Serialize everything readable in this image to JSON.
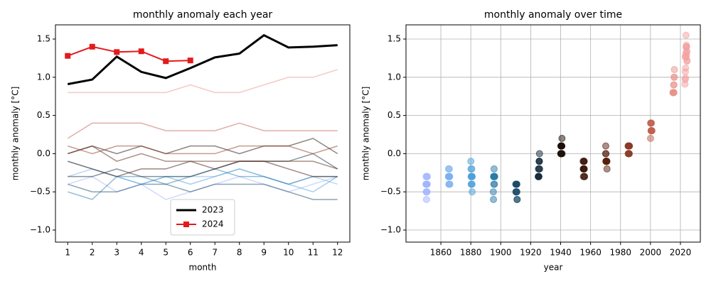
{
  "chart_data": [
    {
      "type": "line",
      "title": "monthly anomaly each year",
      "xlabel": "month",
      "ylabel": "monthly anomaly [°C]",
      "x": [
        1,
        2,
        3,
        4,
        5,
        6,
        7,
        8,
        9,
        10,
        11,
        12
      ],
      "xlim": [
        0.5,
        12.5
      ],
      "xticks": [
        1,
        2,
        3,
        4,
        5,
        6,
        7,
        8,
        9,
        10,
        11,
        12
      ],
      "ylim": [
        -1.158,
        1.686
      ],
      "yticks": [
        {
          "value": -1,
          "label": "−1.0"
        },
        {
          "value": -0.5,
          "label": "−0.5"
        },
        {
          "value": 0,
          "label": "0.0"
        },
        {
          "value": 0.5,
          "label": "0.5"
        },
        {
          "value": 1,
          "label": "1.0"
        },
        {
          "value": 1.5,
          "label": "1.5"
        }
      ],
      "grid": false,
      "legend": "lower center",
      "series": [
        {
          "color": "#a0b4ff",
          "values": [
            -0.4,
            -0.3,
            -0.5,
            -0.4,
            -0.6,
            -0.5,
            -0.4,
            -0.3,
            -0.4,
            -0.5,
            -0.4,
            -0.3
          ]
        },
        {
          "color": "#7cb0ee",
          "values": [
            -0.3,
            -0.2,
            -0.3,
            -0.4,
            -0.3,
            -0.3,
            -0.3,
            -0.2,
            -0.3,
            -0.4,
            -0.3,
            -0.4
          ]
        },
        {
          "color": "#4a9fd8",
          "values": [
            -0.1,
            -0.2,
            -0.3,
            -0.4,
            -0.3,
            -0.4,
            -0.3,
            -0.2,
            -0.3,
            -0.4,
            -0.5,
            -0.3
          ]
        },
        {
          "color": "#2a7aa8",
          "values": [
            -0.5,
            -0.6,
            -0.3,
            -0.3,
            -0.4,
            -0.3,
            -0.2,
            -0.3,
            -0.3,
            -0.4,
            -0.3,
            -0.3
          ]
        },
        {
          "color": "#1a4a66",
          "values": [
            -0.4,
            -0.5,
            -0.5,
            -0.4,
            -0.4,
            -0.5,
            -0.4,
            -0.4,
            -0.4,
            -0.5,
            -0.6,
            -0.6
          ]
        },
        {
          "color": "#10283a",
          "values": [
            -0.3,
            -0.3,
            -0.2,
            -0.3,
            -0.3,
            -0.3,
            -0.2,
            -0.1,
            -0.1,
            -0.1,
            0.0,
            -0.2
          ]
        },
        {
          "color": "#1a0c05",
          "values": [
            0.0,
            0.1,
            0.0,
            0.1,
            0.0,
            0.1,
            0.1,
            0.0,
            0.1,
            0.1,
            0.2,
            0.0
          ]
        },
        {
          "color": "#3a1408",
          "values": [
            -0.1,
            -0.2,
            -0.3,
            -0.2,
            -0.2,
            -0.1,
            -0.2,
            -0.1,
            -0.1,
            -0.2,
            -0.3,
            -0.3
          ]
        },
        {
          "color": "#5a200e",
          "values": [
            0.0,
            0.1,
            -0.1,
            0.0,
            -0.1,
            -0.1,
            -0.1,
            -0.1,
            -0.1,
            -0.1,
            -0.1,
            -0.2
          ]
        },
        {
          "color": "#8a3a24",
          "values": [
            0.1,
            0.0,
            0.1,
            0.1,
            0.0,
            0.0,
            0.0,
            0.1,
            0.1,
            0.1,
            0.0,
            0.1
          ]
        },
        {
          "color": "#c06050",
          "values": [
            0.2,
            0.4,
            0.4,
            0.4,
            0.3,
            0.3,
            0.3,
            0.4,
            0.3,
            0.3,
            0.3,
            0.3
          ]
        },
        {
          "color": "#e8948c",
          "values": [
            0.8,
            0.8,
            0.8,
            0.8,
            0.8,
            0.9,
            0.8,
            0.8,
            0.9,
            1.0,
            1.0,
            1.1
          ]
        },
        {
          "name": "2023",
          "color": "#000000",
          "width": 3,
          "values": [
            0.91,
            0.97,
            1.27,
            1.07,
            0.99,
            1.12,
            1.26,
            1.31,
            1.55,
            1.39,
            1.4,
            1.42
          ]
        },
        {
          "name": "2024",
          "color": "#e31a1c",
          "width": 2,
          "marker": "square",
          "values": [
            1.28,
            1.4,
            1.33,
            1.34,
            1.21,
            1.22,
            null,
            null,
            null,
            null,
            null,
            null
          ]
        }
      ]
    },
    {
      "type": "scatter",
      "title": "monthly anomaly over time",
      "xlabel": "year",
      "ylabel": "monthly anomaly [°C]",
      "xlim": [
        1836.7,
        2033.3
      ],
      "xticks": [
        1860,
        1880,
        1900,
        1920,
        1940,
        1960,
        1980,
        2000,
        2020
      ],
      "ylim": [
        -1.158,
        1.686
      ],
      "yticks": [
        {
          "value": -1,
          "label": "−1.0"
        },
        {
          "value": -0.5,
          "label": "−0.5"
        },
        {
          "value": 0,
          "label": "0.0"
        },
        {
          "value": 0.5,
          "label": "0.5"
        },
        {
          "value": 1,
          "label": "1.0"
        },
        {
          "value": 1.5,
          "label": "1.5"
        }
      ],
      "grid": true,
      "series": [
        {
          "color": "#a0b4ff",
          "x": [
            1850.04,
            1850.13,
            1850.21,
            1850.29,
            1850.38,
            1850.46,
            1850.54,
            1850.63,
            1850.71,
            1850.79,
            1850.88,
            1850.96
          ],
          "values": [
            -0.4,
            -0.3,
            -0.5,
            -0.4,
            -0.6,
            -0.5,
            -0.4,
            -0.3,
            -0.4,
            -0.5,
            -0.4,
            -0.3
          ]
        },
        {
          "color": "#7cb0ee",
          "x": [
            1865.04,
            1865.13,
            1865.21,
            1865.29,
            1865.38,
            1865.46,
            1865.54,
            1865.63,
            1865.71,
            1865.79,
            1865.88,
            1865.96
          ],
          "values": [
            -0.3,
            -0.2,
            -0.3,
            -0.4,
            -0.3,
            -0.3,
            -0.3,
            -0.2,
            -0.3,
            -0.4,
            -0.3,
            -0.4
          ]
        },
        {
          "color": "#4a9fd8",
          "x": [
            1880.04,
            1880.13,
            1880.21,
            1880.29,
            1880.38,
            1880.46,
            1880.54,
            1880.63,
            1880.71,
            1880.79,
            1880.88,
            1880.96
          ],
          "values": [
            -0.1,
            -0.2,
            -0.3,
            -0.4,
            -0.3,
            -0.4,
            -0.3,
            -0.2,
            -0.3,
            -0.4,
            -0.5,
            -0.3
          ]
        },
        {
          "color": "#2a7aa8",
          "x": [
            1895.04,
            1895.13,
            1895.21,
            1895.29,
            1895.38,
            1895.46,
            1895.54,
            1895.63,
            1895.71,
            1895.79,
            1895.88,
            1895.96
          ],
          "values": [
            -0.5,
            -0.6,
            -0.3,
            -0.3,
            -0.4,
            -0.3,
            -0.2,
            -0.3,
            -0.3,
            -0.4,
            -0.3,
            -0.3
          ]
        },
        {
          "color": "#1a4a66",
          "x": [
            1910.04,
            1910.13,
            1910.21,
            1910.29,
            1910.38,
            1910.46,
            1910.54,
            1910.63,
            1910.71,
            1910.79,
            1910.88,
            1910.96
          ],
          "values": [
            -0.4,
            -0.5,
            -0.5,
            -0.4,
            -0.4,
            -0.5,
            -0.4,
            -0.4,
            -0.4,
            -0.5,
            -0.6,
            -0.6
          ]
        },
        {
          "color": "#10283a",
          "x": [
            1925.04,
            1925.13,
            1925.21,
            1925.29,
            1925.38,
            1925.46,
            1925.54,
            1925.63,
            1925.71,
            1925.79,
            1925.88,
            1925.96
          ],
          "values": [
            -0.3,
            -0.3,
            -0.2,
            -0.3,
            -0.3,
            -0.3,
            -0.2,
            -0.1,
            -0.1,
            -0.1,
            0.0,
            -0.2
          ]
        },
        {
          "color": "#1a0c05",
          "x": [
            1940.04,
            1940.13,
            1940.21,
            1940.29,
            1940.38,
            1940.46,
            1940.54,
            1940.63,
            1940.71,
            1940.79,
            1940.88,
            1940.96
          ],
          "values": [
            0.0,
            0.1,
            0.0,
            0.1,
            0.0,
            0.1,
            0.1,
            0.0,
            0.1,
            0.1,
            0.2,
            0.0
          ]
        },
        {
          "color": "#3a1408",
          "x": [
            1955.04,
            1955.13,
            1955.21,
            1955.29,
            1955.38,
            1955.46,
            1955.54,
            1955.63,
            1955.71,
            1955.79,
            1955.88,
            1955.96
          ],
          "values": [
            -0.1,
            -0.2,
            -0.3,
            -0.2,
            -0.2,
            -0.1,
            -0.2,
            -0.1,
            -0.1,
            -0.2,
            -0.3,
            -0.3
          ]
        },
        {
          "color": "#5a200e",
          "x": [
            1970.04,
            1970.13,
            1970.21,
            1970.29,
            1970.38,
            1970.46,
            1970.54,
            1970.63,
            1970.71,
            1970.79,
            1970.88,
            1970.96
          ],
          "values": [
            0.0,
            0.1,
            -0.1,
            0.0,
            -0.1,
            -0.1,
            -0.1,
            -0.1,
            -0.1,
            -0.1,
            -0.1,
            -0.2
          ]
        },
        {
          "color": "#8a3a24",
          "x": [
            1985.04,
            1985.13,
            1985.21,
            1985.29,
            1985.38,
            1985.46,
            1985.54,
            1985.63,
            1985.71,
            1985.79,
            1985.88,
            1985.96
          ],
          "values": [
            0.1,
            0.0,
            0.1,
            0.1,
            0.0,
            0.0,
            0.0,
            0.1,
            0.1,
            0.1,
            0.0,
            0.1
          ]
        },
        {
          "color": "#c06050",
          "x": [
            2000.04,
            2000.13,
            2000.21,
            2000.29,
            2000.38,
            2000.46,
            2000.54,
            2000.63,
            2000.71,
            2000.79,
            2000.88,
            2000.96
          ],
          "values": [
            0.2,
            0.4,
            0.4,
            0.4,
            0.3,
            0.3,
            0.3,
            0.4,
            0.3,
            0.3,
            0.3,
            0.3
          ]
        },
        {
          "color": "#e8948c",
          "x": [
            2015.04,
            2015.13,
            2015.21,
            2015.29,
            2015.38,
            2015.46,
            2015.54,
            2015.63,
            2015.71,
            2015.79,
            2015.88,
            2015.96
          ],
          "values": [
            0.8,
            0.8,
            0.8,
            0.8,
            0.8,
            0.9,
            0.8,
            0.8,
            0.9,
            1.0,
            1.0,
            1.1
          ]
        },
        {
          "color": "#f4a0a0",
          "x": [
            2023.04,
            2023.13,
            2023.21,
            2023.29,
            2023.38,
            2023.46,
            2023.54,
            2023.63,
            2023.71,
            2023.79,
            2023.88,
            2023.96
          ],
          "values": [
            0.91,
            0.97,
            1.27,
            1.07,
            0.99,
            1.12,
            1.26,
            1.31,
            1.55,
            1.39,
            1.4,
            1.42
          ]
        },
        {
          "color": "#f4a0a0",
          "x": [
            2024.04,
            2024.13,
            2024.21,
            2024.29,
            2024.38,
            2024.46
          ],
          "values": [
            1.28,
            1.4,
            1.33,
            1.34,
            1.21,
            1.22
          ]
        }
      ]
    }
  ]
}
